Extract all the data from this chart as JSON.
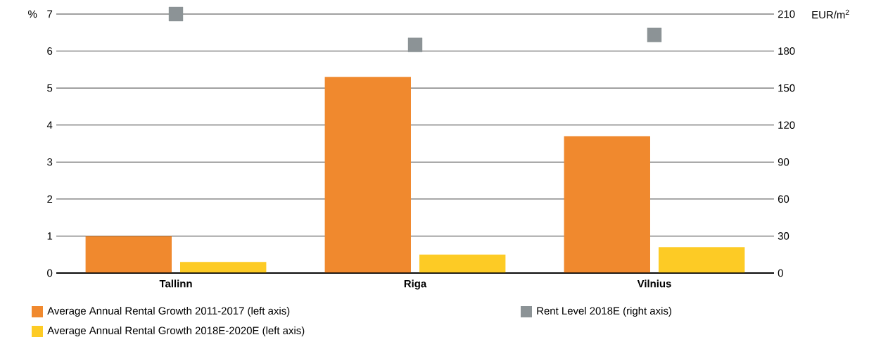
{
  "chart_data": {
    "type": "bar",
    "ylabel": "%",
    "y2label": "EUR/m$^{2}$",
    "categories": [
      "Tallinn",
      "Riga",
      "Vilnius"
    ],
    "series": [
      {
        "name": "Average Annual Rental Growth 2011-2017 (left axis)",
        "color": "#f0892e",
        "values": [
          1.0,
          5.3,
          3.7
        ]
      },
      {
        "name": "Average Annual Rental Growth 2018E-2020E (left axis)",
        "color": "#fdcb25",
        "values": [
          0.3,
          0.5,
          0.7
        ]
      },
      {
        "name": "Rent Level 2018E (right axis)",
        "type": "scatter",
        "axis": "y2",
        "marker": "square",
        "color": "#8c9396",
        "values": [
          210,
          185,
          193
        ]
      }
    ],
    "ylim": [
      0,
      7
    ],
    "yticks": [
      0,
      1,
      2,
      3,
      4,
      5,
      6,
      7
    ],
    "y2lim": [
      0,
      210
    ],
    "y2ticks": [
      0,
      30,
      60,
      90,
      120,
      150,
      180,
      210
    ],
    "grid": "y",
    "legend": "bottom"
  }
}
